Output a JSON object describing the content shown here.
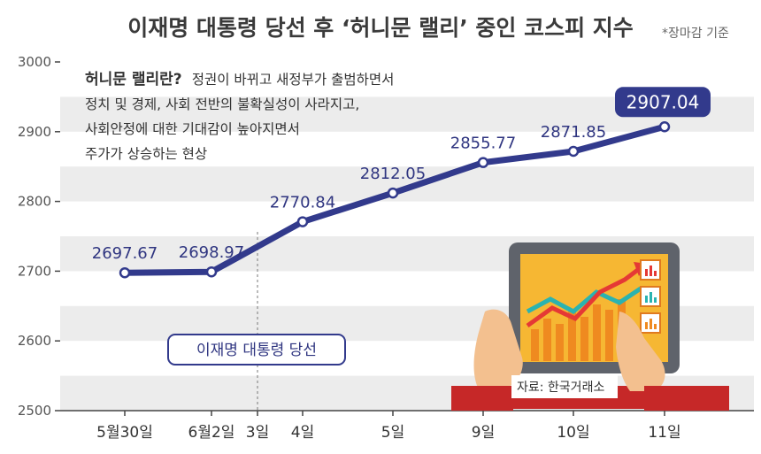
{
  "header": {
    "title": "이재명 대통령 당선 후 ‘허니문 랠리’ 중인 코스피 지수",
    "note": "*장마감 기준"
  },
  "annotation": {
    "title": "허니문 랠리란?",
    "line1": "정권이 바뀌고 새정부가 출범하면서",
    "line2": "정치 및 경제, 사회 전반의 불확실성이 사라지고,",
    "line3": "사회안정에 대한 기대감이 높아지면서",
    "line4": "주가가 상승하는 현상"
  },
  "event_label": "이재명 대통령 당선",
  "source": "자료: 한국거래소",
  "colors": {
    "line": "#323a8c",
    "band": "#ececec",
    "highlight_box": "#323a8c",
    "event_border": "#323a8c"
  },
  "chart_data": {
    "type": "line",
    "title": "이재명 대통령 당선 후 ‘허니문 랠리’ 중인 코스피 지수",
    "xlabel": "",
    "ylabel": "",
    "ylim": [
      2500,
      3000
    ],
    "yticks": [
      "3000",
      "2900",
      "2800",
      "2700",
      "2600",
      "2500"
    ],
    "ytick_values": [
      3000,
      2900,
      2800,
      2700,
      2600,
      2500
    ],
    "categories": [
      "5월30일",
      "6월2일",
      "4일",
      "5일",
      "9일",
      "10일",
      "11일"
    ],
    "values": [
      2697.67,
      2698.97,
      2770.84,
      2812.05,
      2855.77,
      2871.85,
      2907.04
    ],
    "value_labels": [
      "2697.67",
      "2698.97",
      "2770.84",
      "2812.05",
      "2855.77",
      "2871.85",
      "2907.04"
    ],
    "event_tick": "3일",
    "highlight": "last",
    "grid": "alternating horizontal bands",
    "legend": "none"
  }
}
